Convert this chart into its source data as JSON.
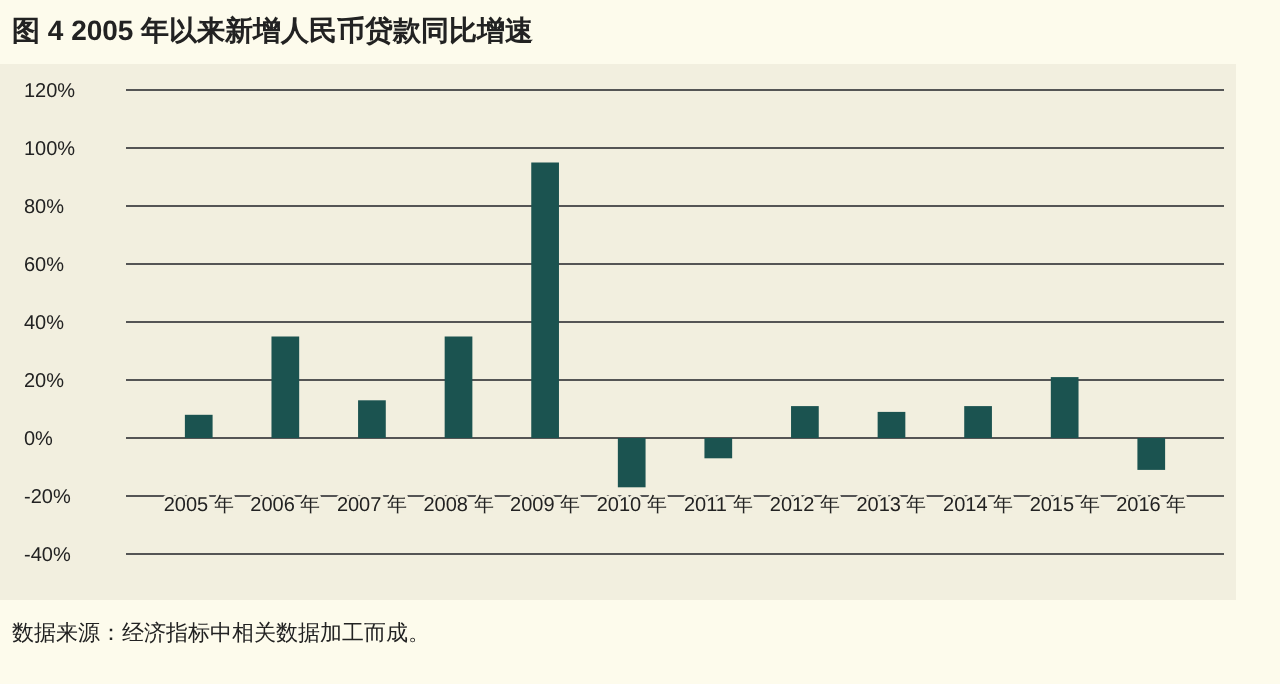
{
  "chart_data": {
    "type": "bar",
    "title": "图 4  2005 年以来新增人民币贷款同比增速",
    "categories": [
      "2005 年",
      "2006 年",
      "2007 年",
      "2008 年",
      "2009 年",
      "2010 年",
      "2011 年",
      "2012 年",
      "2013 年",
      "2014 年",
      "2015 年",
      "2016 年"
    ],
    "values": [
      8,
      35,
      13,
      35,
      95,
      -17,
      -7,
      11,
      9,
      11,
      21,
      -11
    ],
    "color": "#1b5350",
    "ylim": [
      -40,
      120
    ],
    "yticks": [
      {
        "value": -40,
        "label": "-40%"
      },
      {
        "value": -20,
        "label": "-20%"
      },
      {
        "value": 0,
        "label": "0%"
      },
      {
        "value": 20,
        "label": "20%"
      },
      {
        "value": 40,
        "label": "40%"
      },
      {
        "value": 60,
        "label": "60%"
      },
      {
        "value": 80,
        "label": "80%"
      },
      {
        "value": 100,
        "label": "100%"
      },
      {
        "value": 120,
        "label": "120%"
      }
    ],
    "grid": "y",
    "annotations": [
      "数据来源：经济指标中相关数据加工而成。"
    ]
  }
}
